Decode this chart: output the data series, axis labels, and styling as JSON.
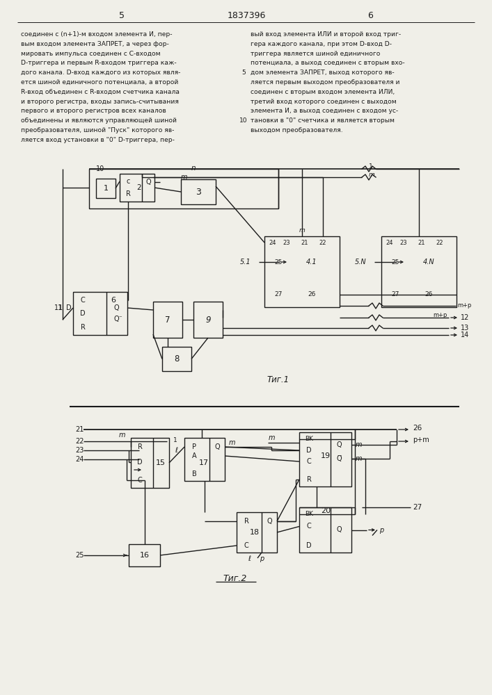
{
  "page_numbers": [
    "5",
    "6"
  ],
  "patent_number": "1837396",
  "bg_color": "#f0efe8",
  "line_color": "#1a1a1a",
  "text_color": "#1a1a1a",
  "left_col_lines": [
    "соединен с (n+1)-м входом элемента И, пер-",
    "вым входом элемента ЗАПРЕТ, а через фор-",
    "мировать импульса соединен с C-входом",
    "D-триггера и первым R-входом триггера каж-",
    "дого канала. D-вход каждого из которых явля-",
    "ется шиной единичного потенциала, а второй",
    "R-вход объединен с R-входом счетчика канала",
    "и второго регистра, входы запись-считывания",
    "первого и второго регистров всех каналов",
    "объединены и являются управляющей шиной",
    "преобразователя, шиной \"Пуск\" которого яв-",
    "ляется вход установки в \"0\" D-триггера, пер-"
  ],
  "right_col_lines": [
    "вый вход элемента ИЛИ и второй вход триг-",
    "гера каждого канала, при этом D-вход D-",
    "триггера является шиной единичного",
    "потенциала, а выход соединен с вторым вхо-",
    "дом элемента ЗАПРЕТ, выход которого яв-",
    "ляется первым выходом преобразователя и",
    "соединен с вторым входом элемента ИЛИ,",
    "третий вход которого соединен с выходом",
    "элемента И, а выход соединен с входом ус-",
    "тановки в \"0\" счетчика и является вторым",
    "выходом преобразователя."
  ]
}
